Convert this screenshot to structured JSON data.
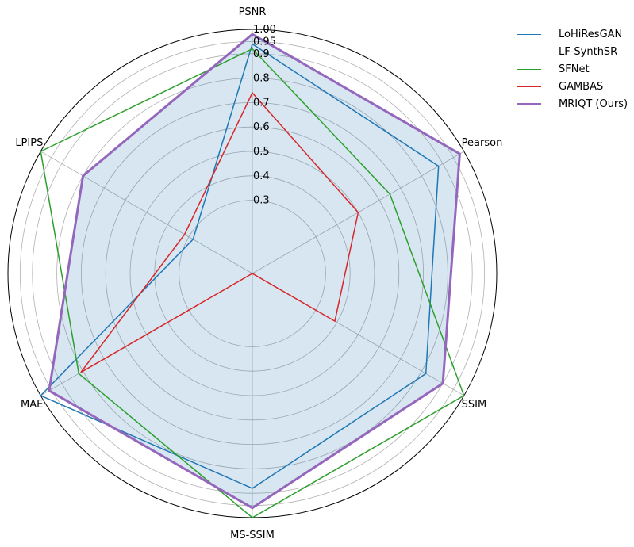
{
  "chart_data": {
    "type": "radar",
    "axes": [
      "PSNR",
      "Pearson",
      "SSIM",
      "MS-SSIM",
      "MAE",
      "LPIPS"
    ],
    "radial_ticks": [
      "0.3",
      "0.4",
      "0.5",
      "0.6",
      "0.7",
      "0.8",
      "0.9",
      "0.95",
      "1.00"
    ],
    "radial_tick_values": [
      0.3,
      0.4,
      0.5,
      0.6,
      0.7,
      0.8,
      0.9,
      0.95,
      1.0
    ],
    "rlim": [
      0.0,
      1.0
    ],
    "grid": true,
    "legend_position": "top-right outside",
    "series": [
      {
        "name": "LoHiResGAN",
        "color": "#1f77b4",
        "values": [
          0.94,
          0.88,
          0.82,
          0.88,
          1.0,
          0.28
        ],
        "linewidth": 1.5,
        "fill": false
      },
      {
        "name": "LF-SynthSR",
        "color": "#ff7f0e",
        "values": [
          0,
          0,
          0,
          0,
          0,
          0
        ],
        "linewidth": 1.5,
        "fill": false
      },
      {
        "name": "SFNet",
        "color": "#2ca02c",
        "values": [
          0.92,
          0.65,
          1.0,
          1.0,
          0.82,
          1.0
        ],
        "linewidth": 1.5,
        "fill": false
      },
      {
        "name": "GAMBAS",
        "color": "#d62728",
        "values": [
          0.74,
          0.5,
          0.39,
          0.0,
          0.81,
          0.32
        ],
        "linewidth": 1.5,
        "fill": false
      },
      {
        "name": "MRIQT (Ours)",
        "color": "#9467bd",
        "values": [
          0.98,
          0.98,
          0.9,
          0.96,
          0.96,
          0.8
        ],
        "linewidth": 3,
        "fill": true,
        "fill_color": "#1f77b4"
      }
    ]
  }
}
